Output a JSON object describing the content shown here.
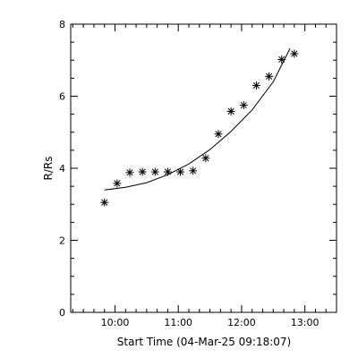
{
  "chart_data": {
    "type": "scatter",
    "xlabel": "Start Time (04-Mar-25 09:18:07)",
    "ylabel": "R/Rs",
    "xlim": [
      "09:18",
      "13:30"
    ],
    "ylim": [
      0,
      8
    ],
    "x_ticks": [
      "10:00",
      "11:00",
      "12:00",
      "13:00"
    ],
    "y_ticks": [
      0,
      2,
      4,
      6,
      8
    ],
    "grid": false,
    "series": [
      {
        "marker": "asterisk",
        "points": [
          {
            "x": "09:50",
            "y": 3.05
          },
          {
            "x": "10:02",
            "y": 3.58
          },
          {
            "x": "10:14",
            "y": 3.88
          },
          {
            "x": "10:26",
            "y": 3.9
          },
          {
            "x": "10:38",
            "y": 3.9
          },
          {
            "x": "10:50",
            "y": 3.9
          },
          {
            "x": "11:02",
            "y": 3.9
          },
          {
            "x": "11:14",
            "y": 3.93
          },
          {
            "x": "11:26",
            "y": 4.28
          },
          {
            "x": "11:38",
            "y": 4.95
          },
          {
            "x": "11:50",
            "y": 5.58
          },
          {
            "x": "12:02",
            "y": 5.75
          },
          {
            "x": "12:14",
            "y": 6.3
          },
          {
            "x": "12:26",
            "y": 6.55
          },
          {
            "x": "12:38",
            "y": 7.02
          },
          {
            "x": "12:50",
            "y": 7.18
          }
        ]
      },
      {
        "type": "line",
        "points": [
          {
            "x": "09:50",
            "y": 3.4
          },
          {
            "x": "10:10",
            "y": 3.47
          },
          {
            "x": "10:30",
            "y": 3.6
          },
          {
            "x": "10:50",
            "y": 3.82
          },
          {
            "x": "11:10",
            "y": 4.12
          },
          {
            "x": "11:30",
            "y": 4.52
          },
          {
            "x": "11:50",
            "y": 5.02
          },
          {
            "x": "12:10",
            "y": 5.62
          },
          {
            "x": "12:30",
            "y": 6.4
          },
          {
            "x": "12:46",
            "y": 7.33
          }
        ]
      }
    ]
  }
}
